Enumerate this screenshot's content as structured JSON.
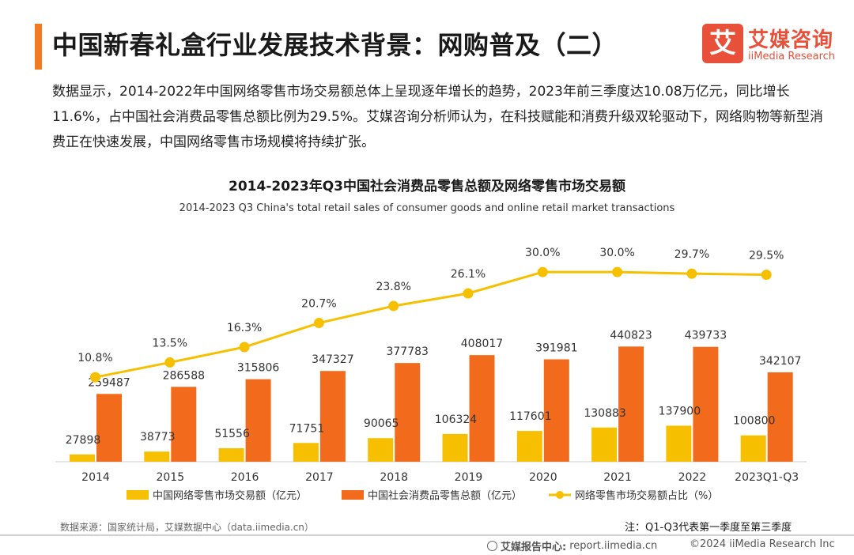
{
  "header": {
    "title": "中国新春礼盒行业发展技术背景：网购普及（二）",
    "accent_color": "#f47a20"
  },
  "logo": {
    "mark": "艾",
    "name_cn": "艾媒咨询",
    "name_en": "iiMedia Research",
    "color": "#e8503a"
  },
  "summary": "数据显示，2014-2022年中国网络零售市场交易额总体上呈现逐年增长的趋势，2023年前三季度达10.08万亿元，同比增长11.6%，占中国社会消费品零售总额比例为29.5%。艾媒咨询分析师认为，在科技赋能和消费升级双轮驱动下，网络购物等新型消费正在快速发展，中国网络零售市场规模将持续扩张。",
  "chart_data": {
    "type": "bar",
    "title": "2014-2023年Q3中国社会消费品零售总额及网络零售市场交易额",
    "subtitle": "2014-2023 Q3 China's total retail sales of consumer goods and online retail market transactions",
    "categories": [
      "2014",
      "2015",
      "2016",
      "2017",
      "2018",
      "2019",
      "2020",
      "2021",
      "2022",
      "2023Q1-Q3"
    ],
    "series": [
      {
        "name": "中国网络零售市场交易额（亿元）",
        "type": "bar",
        "color": "#f6c000",
        "values": [
          27898,
          38773,
          51556,
          71751,
          90065,
          106324,
          117601,
          130883,
          137900,
          100800
        ]
      },
      {
        "name": "中国社会消费品零售总额（亿元）",
        "type": "bar",
        "color": "#f26a1b",
        "values": [
          259487,
          286588,
          315806,
          347327,
          377783,
          408017,
          391981,
          440823,
          439733,
          342107
        ]
      },
      {
        "name": "网络零售市场交易额占比（%）",
        "type": "line",
        "color": "#f6c000",
        "values": [
          10.8,
          13.5,
          16.3,
          20.7,
          23.8,
          26.1,
          30.0,
          30.0,
          29.7,
          29.5
        ],
        "labels": [
          "10.8%",
          "13.5%",
          "16.3%",
          "20.7%",
          "23.8%",
          "26.1%",
          "30.0%",
          "30.0%",
          "29.7%",
          "29.5%"
        ]
      }
    ],
    "ylim": [
      0,
      500000
    ],
    "line_ylim": [
      0,
      40
    ],
    "legend_position": "bottom"
  },
  "footer": {
    "source": "数据来源：国家统计局，艾媒数据中心（data.iimedia.cn）",
    "note": "注：Q1-Q3代表第一季度至第三季度",
    "report_label": "艾媒报告中心:",
    "report_url": "report.iimedia.cn",
    "copyright": "©2024  iiMedia Research  Inc"
  }
}
